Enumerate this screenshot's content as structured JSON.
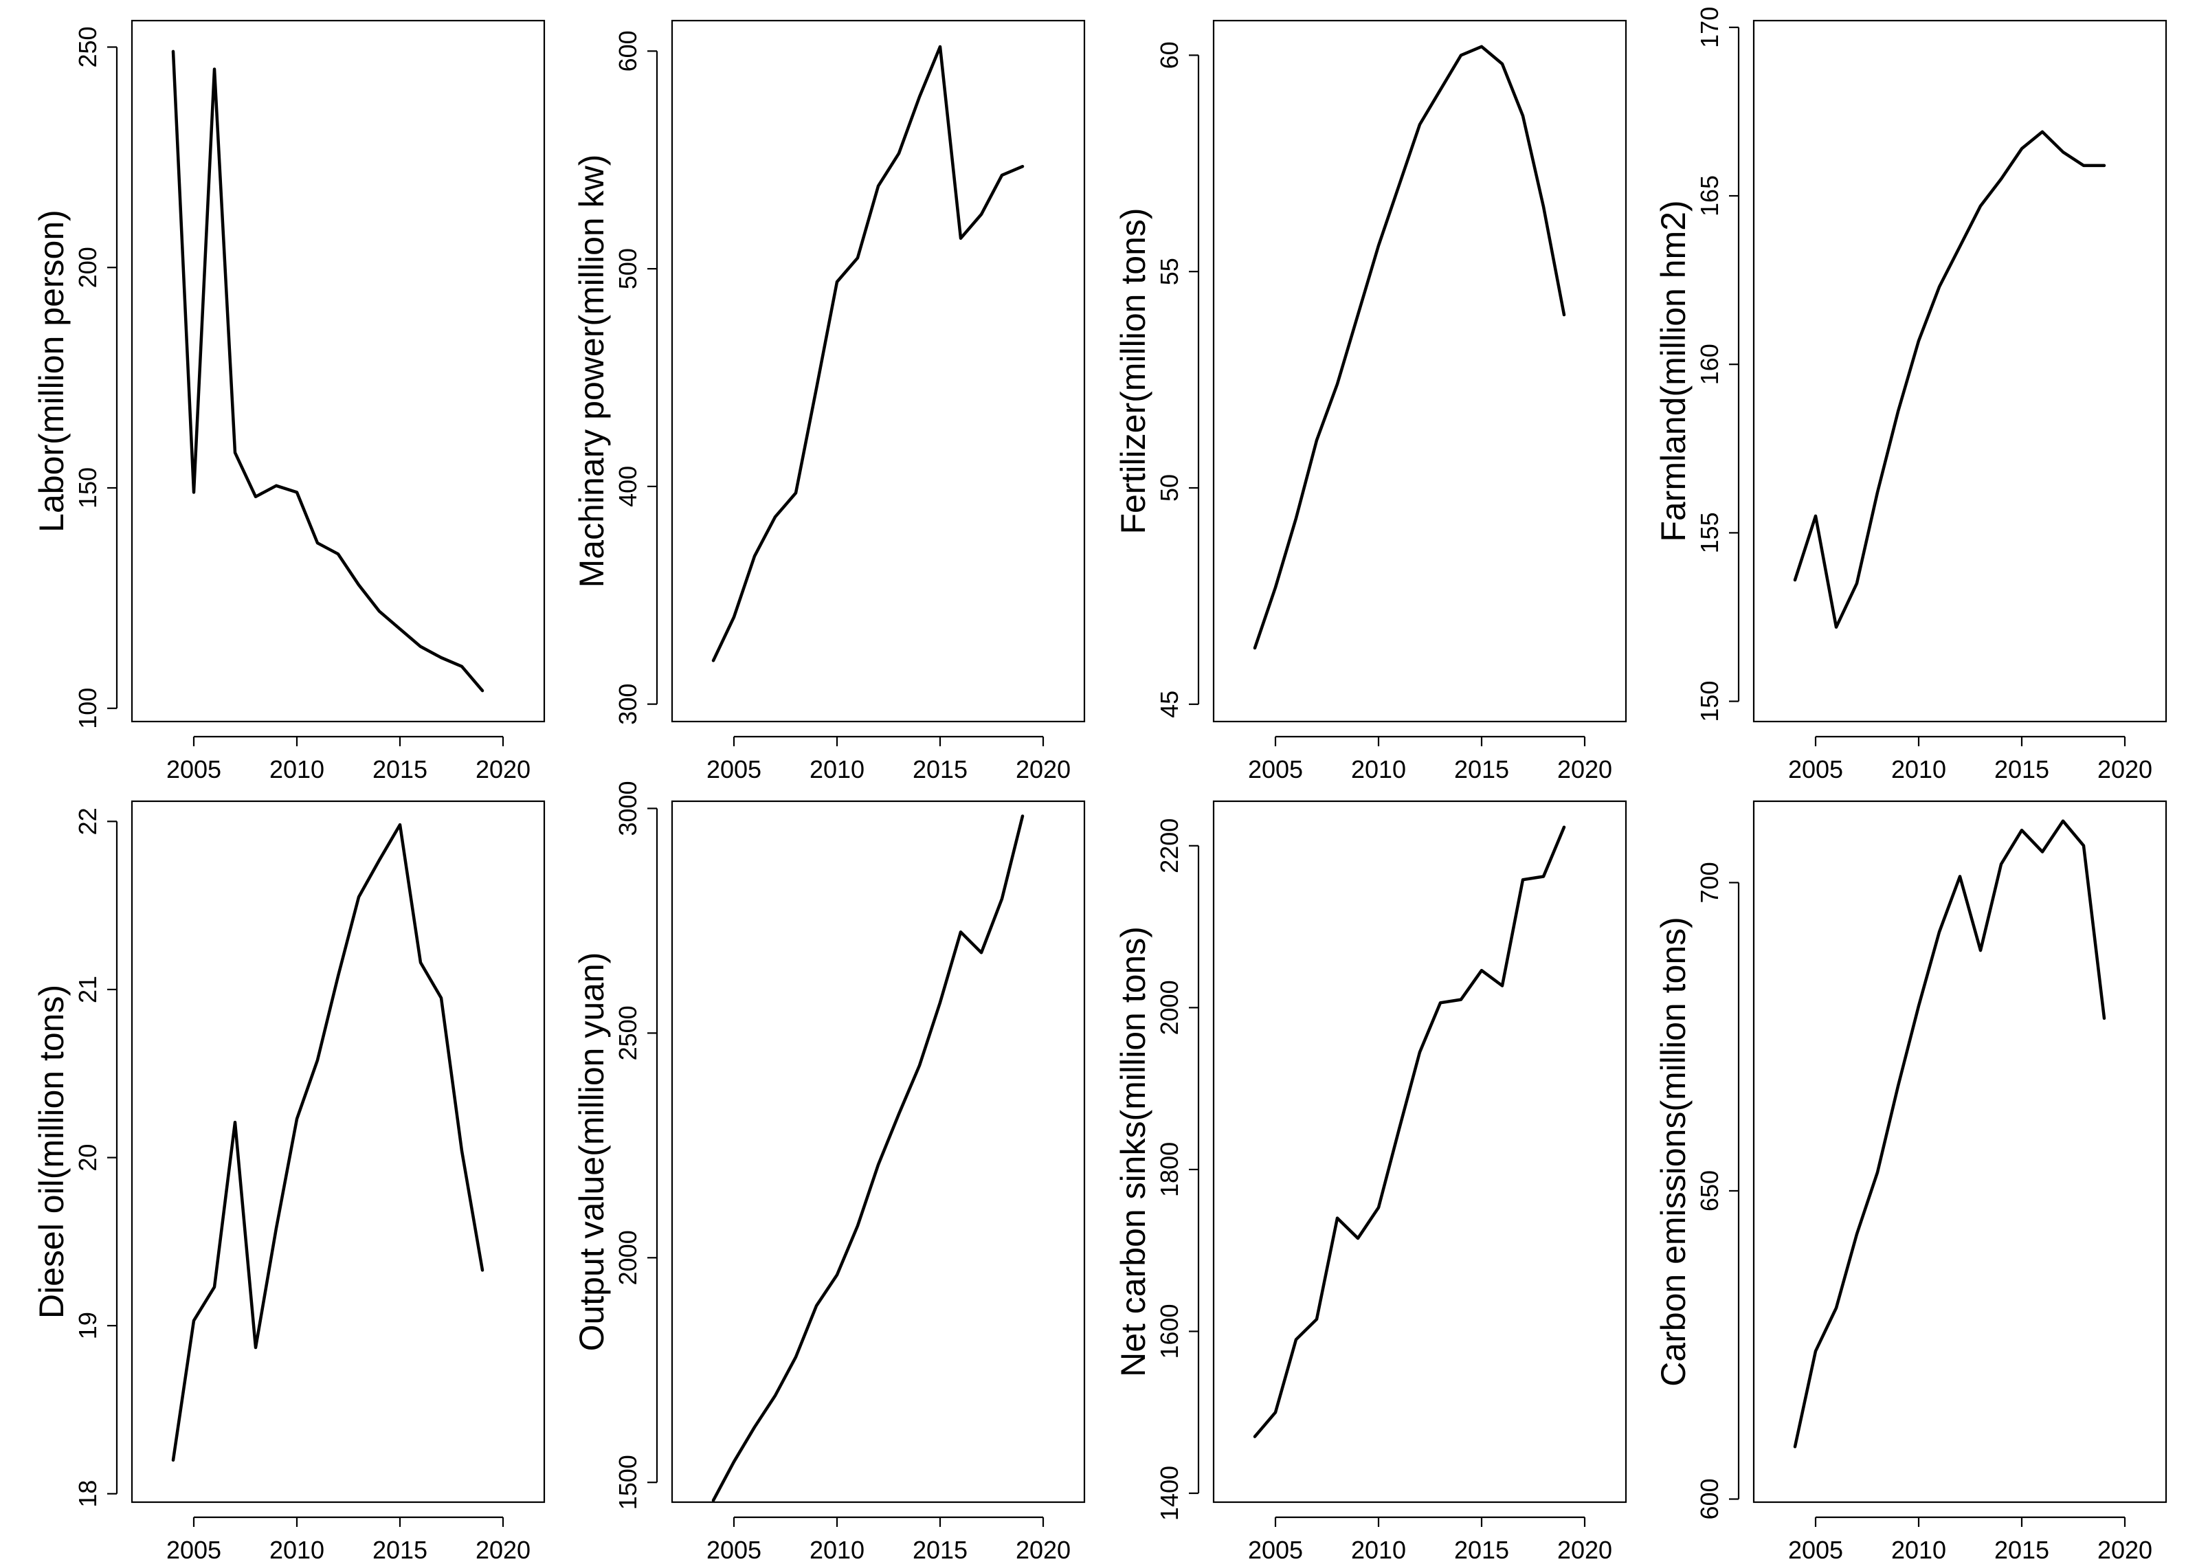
{
  "chart_data": [
    {
      "type": "line",
      "ylabel": "Labor(million person)",
      "x": [
        2004,
        2005,
        2006,
        2007,
        2008,
        2009,
        2010,
        2011,
        2012,
        2013,
        2014,
        2015,
        2016,
        2017,
        2018,
        2019
      ],
      "values": [
        249,
        149,
        245,
        158,
        148,
        150.5,
        149,
        137.5,
        135,
        128,
        122,
        118,
        114,
        111.5,
        109.5,
        104
      ],
      "xlim": [
        2002,
        2022
      ],
      "ylim": [
        97,
        256
      ],
      "x_ticks": [
        2005,
        2010,
        2015,
        2020
      ],
      "y_ticks": [
        100,
        150,
        200,
        250
      ]
    },
    {
      "type": "line",
      "ylabel": "Machinary power(million kw)",
      "x": [
        2004,
        2005,
        2006,
        2007,
        2008,
        2009,
        2010,
        2011,
        2012,
        2013,
        2014,
        2015,
        2016,
        2017,
        2018,
        2019
      ],
      "values": [
        320,
        340,
        368,
        386,
        397,
        445,
        494,
        505,
        538,
        553,
        579,
        602,
        514,
        525,
        543,
        547
      ],
      "xlim": [
        2002,
        2022
      ],
      "ylim": [
        292,
        614
      ],
      "x_ticks": [
        2005,
        2010,
        2015,
        2020
      ],
      "y_ticks": [
        300,
        400,
        500,
        600
      ]
    },
    {
      "type": "line",
      "ylabel": "Fertilizer(million tons)",
      "x": [
        2004,
        2005,
        2006,
        2007,
        2008,
        2009,
        2010,
        2011,
        2012,
        2013,
        2014,
        2015,
        2016,
        2017,
        2018,
        2019
      ],
      "values": [
        46.3,
        47.7,
        49.3,
        51.1,
        52.4,
        54,
        55.6,
        57,
        58.4,
        59.2,
        60,
        60.2,
        59.8,
        58.6,
        56.5,
        54
      ],
      "xlim": [
        2002,
        2022
      ],
      "ylim": [
        44.6,
        60.8
      ],
      "x_ticks": [
        2005,
        2010,
        2015,
        2020
      ],
      "y_ticks": [
        45,
        50,
        55,
        60
      ]
    },
    {
      "type": "line",
      "ylabel": "Farmland(million hm2)",
      "x": [
        2004,
        2005,
        2006,
        2007,
        2008,
        2009,
        2010,
        2011,
        2012,
        2013,
        2014,
        2015,
        2016,
        2017,
        2018,
        2019
      ],
      "values": [
        153.6,
        155.5,
        152.2,
        153.5,
        156.2,
        158.6,
        160.7,
        162.3,
        163.5,
        164.7,
        165.5,
        166.4,
        166.9,
        166.3,
        165.9,
        165.9
      ],
      "xlim": [
        2002,
        2022
      ],
      "ylim": [
        149.4,
        170.2
      ],
      "x_ticks": [
        2005,
        2010,
        2015,
        2020
      ],
      "y_ticks": [
        150,
        155,
        160,
        165,
        170
      ]
    },
    {
      "type": "line",
      "ylabel": "Diesel oil(million tons)",
      "x": [
        2004,
        2005,
        2006,
        2007,
        2008,
        2009,
        2010,
        2011,
        2012,
        2013,
        2014,
        2015,
        2016,
        2017,
        2018,
        2019
      ],
      "values": [
        18.2,
        19.03,
        19.23,
        20.21,
        18.87,
        19.58,
        20.23,
        20.58,
        21.08,
        21.55,
        21.77,
        21.98,
        21.16,
        20.95,
        20.04,
        19.33
      ],
      "xlim": [
        2002,
        2022
      ],
      "ylim": [
        17.95,
        22.12
      ],
      "x_ticks": [
        2005,
        2010,
        2015,
        2020
      ],
      "y_ticks": [
        18,
        19,
        20,
        21,
        22
      ]
    },
    {
      "type": "line",
      "ylabel": "Output value(million yuan)",
      "x": [
        2004,
        2005,
        2006,
        2007,
        2008,
        2009,
        2010,
        2011,
        2012,
        2013,
        2014,
        2015,
        2016,
        2017,
        2018,
        2019
      ],
      "values": [
        1460,
        1546,
        1623,
        1693,
        1779,
        1893,
        1962,
        2071,
        2207,
        2320,
        2428,
        2568,
        2725,
        2679,
        2799,
        2983
      ],
      "xlim": [
        2002,
        2022
      ],
      "ylim": [
        1456,
        3016
      ],
      "x_ticks": [
        2005,
        2010,
        2015,
        2020
      ],
      "y_ticks": [
        1500,
        2000,
        2500,
        3000
      ]
    },
    {
      "type": "line",
      "ylabel": "Net carbon sinks(million tons)",
      "x": [
        2004,
        2005,
        2006,
        2007,
        2008,
        2009,
        2010,
        2011,
        2012,
        2013,
        2014,
        2015,
        2016,
        2017,
        2018,
        2019
      ],
      "values": [
        1470,
        1500,
        1590,
        1615,
        1740,
        1715,
        1753,
        1850,
        1945,
        2006,
        2010,
        2046,
        2027,
        2158,
        2162,
        2223
      ],
      "xlim": [
        2002,
        2022
      ],
      "ylim": [
        1389,
        2255
      ],
      "x_ticks": [
        2005,
        2010,
        2015,
        2020
      ],
      "y_ticks": [
        1400,
        1600,
        1800,
        2000,
        2200
      ]
    },
    {
      "type": "line",
      "ylabel": "Carbon emissions(million tons)",
      "x": [
        2004,
        2005,
        2006,
        2007,
        2008,
        2009,
        2010,
        2011,
        2012,
        2013,
        2014,
        2015,
        2016,
        2017,
        2018,
        2019
      ],
      "values": [
        608.5,
        624,
        631,
        643,
        653,
        667,
        680,
        692,
        701,
        689,
        703,
        708.5,
        705,
        710,
        706,
        678
      ],
      "xlim": [
        2002,
        2022
      ],
      "ylim": [
        599.5,
        713.2
      ],
      "x_ticks": [
        2005,
        2010,
        2015,
        2020
      ],
      "y_ticks": [
        600,
        650,
        700
      ]
    }
  ]
}
